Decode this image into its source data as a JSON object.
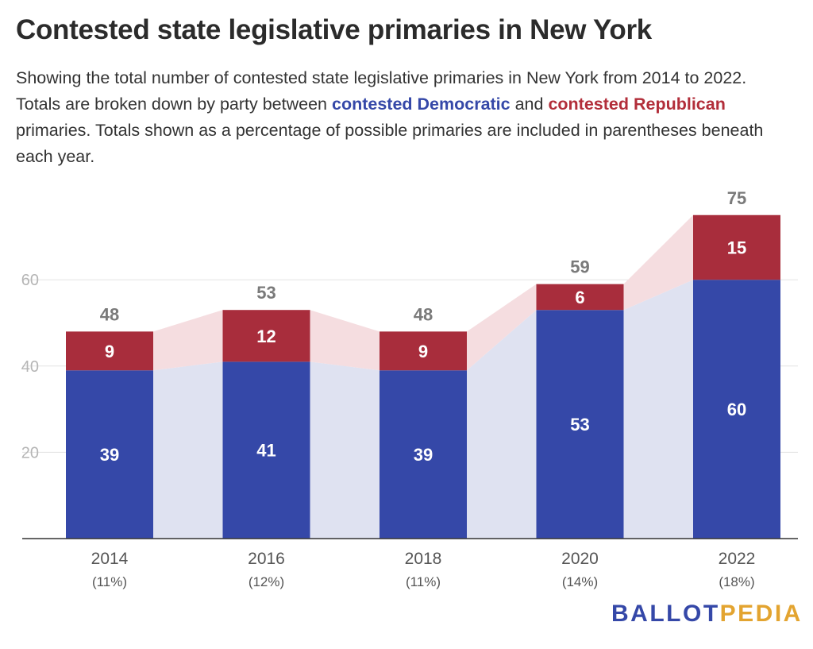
{
  "header": {
    "title": "Contested state legislative primaries in New York",
    "subtitle_part1": "Showing the total number of contested state legislative primaries in New York from 2014 to 2022. Totals are broken down by party between ",
    "subtitle_dem": "contested Democratic",
    "subtitle_part2": " and ",
    "subtitle_rep": "contested Republican",
    "subtitle_part3": " primaries. Totals shown as a percentage of possible primaries are included in parentheses beneath each year."
  },
  "logo": {
    "part1": "BALLOT",
    "part2": "PEDIA"
  },
  "colors": {
    "democratic": "#3548a8",
    "republican": "#a82d3c",
    "democratic_area": "#dfe2f1",
    "republican_area": "#f5dde0",
    "grid": "#e3e3e3",
    "axis": "#333333",
    "tick_label": "#b5b5b5",
    "total_label": "#7a7a7a"
  },
  "chart_data": {
    "type": "bar",
    "stacked": true,
    "categories": [
      "2014",
      "2016",
      "2018",
      "2020",
      "2022"
    ],
    "category_sublabels": [
      "(11%)",
      "(12%)",
      "(11%)",
      "(14%)",
      "(18%)"
    ],
    "series": [
      {
        "name": "contested Democratic",
        "values": [
          39,
          41,
          39,
          53,
          60
        ]
      },
      {
        "name": "contested Republican",
        "values": [
          9,
          12,
          9,
          6,
          15
        ]
      }
    ],
    "totals": [
      48,
      53,
      48,
      59,
      75
    ],
    "yticks": [
      20,
      40,
      60
    ],
    "ylim": [
      0,
      75
    ],
    "grid": true
  }
}
